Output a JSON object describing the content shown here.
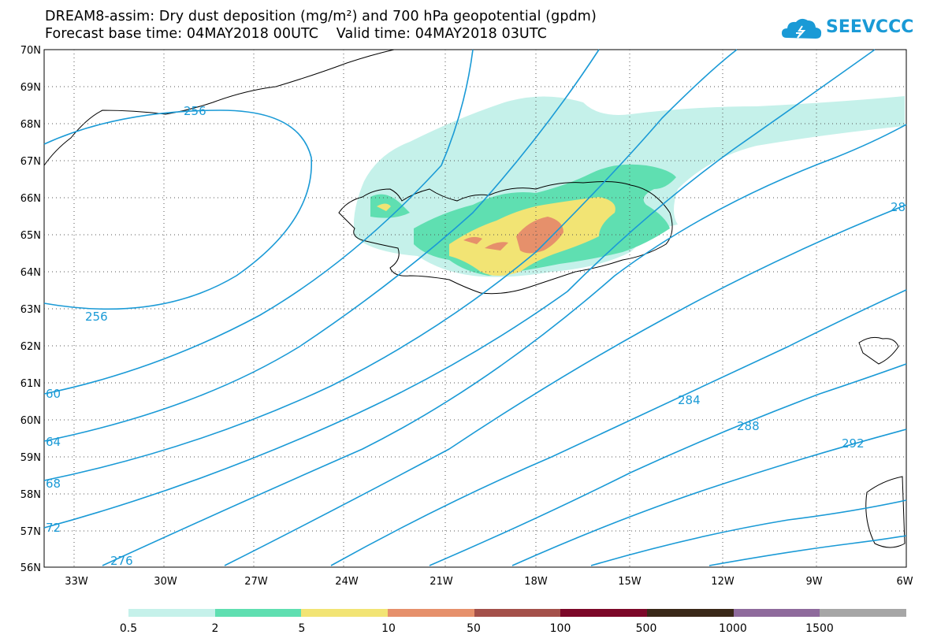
{
  "title": {
    "line1": "DREAM8-assim: Dry dust deposition (mg/m²) and 700 hPa geopotential (gpdm)",
    "line2": "Forecast base time: 04MAY2018 00UTC    Valid time: 04MAY2018 03UTC"
  },
  "logo": {
    "text": "SEEVCCC",
    "icon": "cloud-logo-icon"
  },
  "axes": {
    "lat_labels": [
      "70N",
      "69N",
      "68N",
      "67N",
      "66N",
      "65N",
      "64N",
      "63N",
      "62N",
      "61N",
      "60N",
      "59N",
      "58N",
      "57N",
      "56N"
    ],
    "lon_labels": [
      "33W",
      "30W",
      "27W",
      "24W",
      "21W",
      "18W",
      "15W",
      "12W",
      "9W",
      "6W"
    ]
  },
  "contours": {
    "color": "#1a9ad6",
    "labels": [
      "256",
      "256",
      "60",
      "64",
      "68",
      "72",
      "276",
      "284",
      "288",
      "292",
      "28"
    ]
  },
  "legend": {
    "colors": [
      "#c5f1ea",
      "#5fdfb1",
      "#f2e474",
      "#e6906b",
      "#a4504a",
      "#7c0829",
      "#3a2818",
      "#8e6a9c",
      "#a6a6a6"
    ],
    "labels": [
      "0.5",
      "2",
      "5",
      "10",
      "50",
      "100",
      "500",
      "1000",
      "1500"
    ]
  },
  "colors": {
    "contour": "#1a9ad6",
    "brand": "#1a9ad6"
  }
}
